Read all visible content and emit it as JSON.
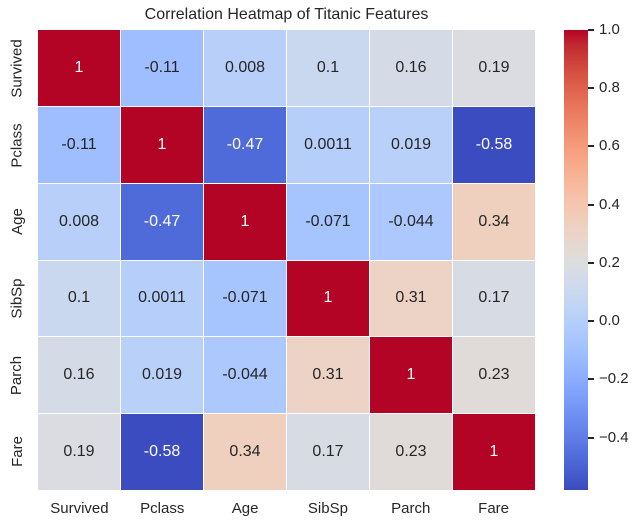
{
  "title": "Correlation Heatmap of Titanic Features",
  "chart_data": {
    "type": "heatmap",
    "title": "Correlation Heatmap of Titanic Features",
    "x_categories": [
      "Survived",
      "Pclass",
      "Age",
      "SibSp",
      "Parch",
      "Fare"
    ],
    "y_categories": [
      "Survived",
      "Pclass",
      "Age",
      "SibSp",
      "Parch",
      "Fare"
    ],
    "matrix": [
      [
        1,
        -0.11,
        0.008,
        0.1,
        0.16,
        0.19
      ],
      [
        -0.11,
        1,
        -0.47,
        0.0011,
        0.019,
        -0.58
      ],
      [
        0.008,
        -0.47,
        1,
        -0.071,
        -0.044,
        0.34
      ],
      [
        0.1,
        0.0011,
        -0.071,
        1,
        0.31,
        0.17
      ],
      [
        0.16,
        0.019,
        -0.044,
        0.31,
        1,
        0.23
      ],
      [
        0.19,
        -0.58,
        0.34,
        0.17,
        0.23,
        1
      ]
    ],
    "cell_labels": [
      [
        "1",
        "-0.11",
        "0.008",
        "0.1",
        "0.16",
        "0.19"
      ],
      [
        "-0.11",
        "1",
        "-0.47",
        "0.0011",
        "0.019",
        "-0.58"
      ],
      [
        "0.008",
        "-0.47",
        "1",
        "-0.071",
        "-0.044",
        "0.34"
      ],
      [
        "0.1",
        "0.0011",
        "-0.071",
        "1",
        "0.31",
        "0.17"
      ],
      [
        "0.16",
        "0.019",
        "-0.044",
        "0.31",
        "1",
        "0.23"
      ],
      [
        "0.19",
        "-0.58",
        "0.34",
        "0.17",
        "0.23",
        "1"
      ]
    ],
    "vmin": -0.58,
    "vmax": 1.0,
    "colormap": "coolwarm",
    "annotated": true,
    "colorbar": {
      "position": "right",
      "tick_labels": [
        "1.0",
        "0.8",
        "0.6",
        "0.4",
        "0.2",
        "0.0",
        "−0.2",
        "−0.4"
      ],
      "tick_values": [
        1.0,
        0.8,
        0.6,
        0.4,
        0.2,
        0.0,
        -0.2,
        -0.4
      ]
    }
  },
  "colors": {
    "background": "#ffffff",
    "label_text": "#262626",
    "annot_dark": "#262626",
    "annot_light": "#ffffff",
    "gridline": "#ffffff",
    "tick_mark": "#262626",
    "cmap_low": "#3b4cc0",
    "cmap_mid": "#dddddd",
    "cmap_high": "#b40426"
  }
}
